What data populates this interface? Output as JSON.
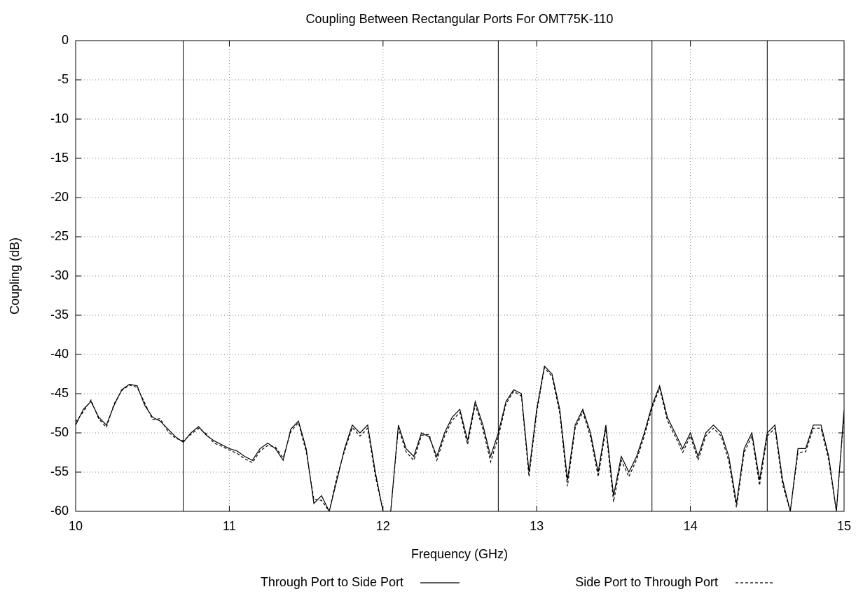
{
  "chart_data": {
    "type": "line",
    "title": "Coupling Between Rectangular Ports For OMT75K-110",
    "xlabel": "Frequency (GHz)",
    "ylabel": "Coupling (dB)",
    "x": [
      10.0,
      10.05,
      10.1,
      10.15,
      10.2,
      10.25,
      10.3,
      10.35,
      10.4,
      10.45,
      10.5,
      10.55,
      10.6,
      10.65,
      10.7,
      10.75,
      10.8,
      10.85,
      10.9,
      10.95,
      11.0,
      11.05,
      11.1,
      11.15,
      11.2,
      11.25,
      11.3,
      11.35,
      11.4,
      11.45,
      11.5,
      11.55,
      11.6,
      11.65,
      11.7,
      11.75,
      11.8,
      11.85,
      11.9,
      11.95,
      12.0,
      12.05,
      12.1,
      12.15,
      12.2,
      12.25,
      12.3,
      12.35,
      12.4,
      12.45,
      12.5,
      12.55,
      12.6,
      12.65,
      12.7,
      12.75,
      12.8,
      12.85,
      12.9,
      12.95,
      13.0,
      13.05,
      13.1,
      13.15,
      13.2,
      13.25,
      13.3,
      13.35,
      13.4,
      13.45,
      13.5,
      13.55,
      13.6,
      13.65,
      13.7,
      13.75,
      13.8,
      13.85,
      13.9,
      13.95,
      14.0,
      14.05,
      14.1,
      14.15,
      14.2,
      14.25,
      14.3,
      14.35,
      14.4,
      14.45,
      14.5,
      14.55,
      14.6,
      14.65,
      14.7,
      14.75,
      14.8,
      14.85,
      14.9,
      14.95,
      15.0
    ],
    "series": [
      {
        "name": "Through Port to Side Port",
        "color": "#000000",
        "dash": "none",
        "values": [
          -49,
          -47,
          -46,
          -48,
          -49,
          -46.5,
          -44.5,
          -43.8,
          -44,
          -46.5,
          -48,
          -48.5,
          -49.5,
          -50.5,
          -51.2,
          -50,
          -49.2,
          -50.3,
          -51,
          -51.5,
          -52,
          -52.3,
          -53,
          -53.5,
          -52,
          -51.3,
          -52,
          -53.5,
          -49.5,
          -48.5,
          -52,
          -59,
          -58,
          -60,
          -56,
          -52,
          -49,
          -50,
          -49,
          -55,
          -60,
          -60,
          -49,
          -52,
          -53,
          -50,
          -50.5,
          -53,
          -50,
          -48,
          -47,
          -51,
          -46,
          -49,
          -53,
          -50,
          -46,
          -44.5,
          -45,
          -55,
          -47,
          -41.5,
          -42.5,
          -47,
          -56,
          -49,
          -47,
          -50,
          -55,
          -49,
          -58,
          -53,
          -55,
          -53,
          -50,
          -46.5,
          -44,
          -48,
          -50,
          -52,
          -50,
          -53,
          -50,
          -49,
          -50,
          -53,
          -59,
          -52,
          -50,
          -56,
          -50,
          -49,
          -56,
          -60,
          -52,
          -52,
          -49,
          -49,
          -53,
          -60,
          -47
        ]
      },
      {
        "name": "Side Port to Through Port",
        "color": "#000000",
        "dash": "4,3",
        "values": [
          -48.6,
          -47.3,
          -45.8,
          -48.2,
          -49.3,
          -46.3,
          -44.6,
          -43.9,
          -44.2,
          -46.2,
          -48.3,
          -48.2,
          -49.8,
          -50.7,
          -51,
          -50.2,
          -49.4,
          -50.1,
          -51.3,
          -51.7,
          -52.2,
          -52.6,
          -53.3,
          -53.8,
          -52.3,
          -51.6,
          -51.8,
          -53.2,
          -49.8,
          -48.7,
          -52.4,
          -58.5,
          -58.6,
          -60,
          -55.6,
          -52.3,
          -49.3,
          -50.4,
          -49.4,
          -55.5,
          -60,
          -60,
          -49.4,
          -52.4,
          -53.5,
          -50.3,
          -50.2,
          -53.5,
          -50.4,
          -48.4,
          -47.4,
          -51.5,
          -46.4,
          -49.5,
          -53.7,
          -50.5,
          -46.3,
          -44.7,
          -45.3,
          -55.6,
          -47.4,
          -41.7,
          -42.8,
          -47.5,
          -56.8,
          -49.4,
          -47.3,
          -50.5,
          -55.6,
          -49.5,
          -58.8,
          -53.5,
          -55.6,
          -53.4,
          -50.4,
          -46.8,
          -44.3,
          -48.4,
          -50.4,
          -52.5,
          -50.4,
          -53.5,
          -50.4,
          -49.4,
          -50.4,
          -53.6,
          -59.5,
          -52.5,
          -50.4,
          -56.7,
          -50.4,
          -49.4,
          -56.6,
          -60,
          -52.5,
          -52.4,
          -49.4,
          -49.4,
          -53.5,
          -60,
          -47.4
        ]
      }
    ],
    "vlines": [
      10.7,
      12.75,
      13.75,
      14.5
    ],
    "xlim": [
      10,
      15
    ],
    "xticks": [
      10,
      11,
      12,
      13,
      14,
      15
    ],
    "ylim": [
      -60,
      0
    ],
    "yticks": [
      -60,
      -55,
      -50,
      -45,
      -40,
      -35,
      -30,
      -25,
      -20,
      -15,
      -10,
      -5,
      0
    ],
    "grid": true,
    "legend": "bottom"
  }
}
